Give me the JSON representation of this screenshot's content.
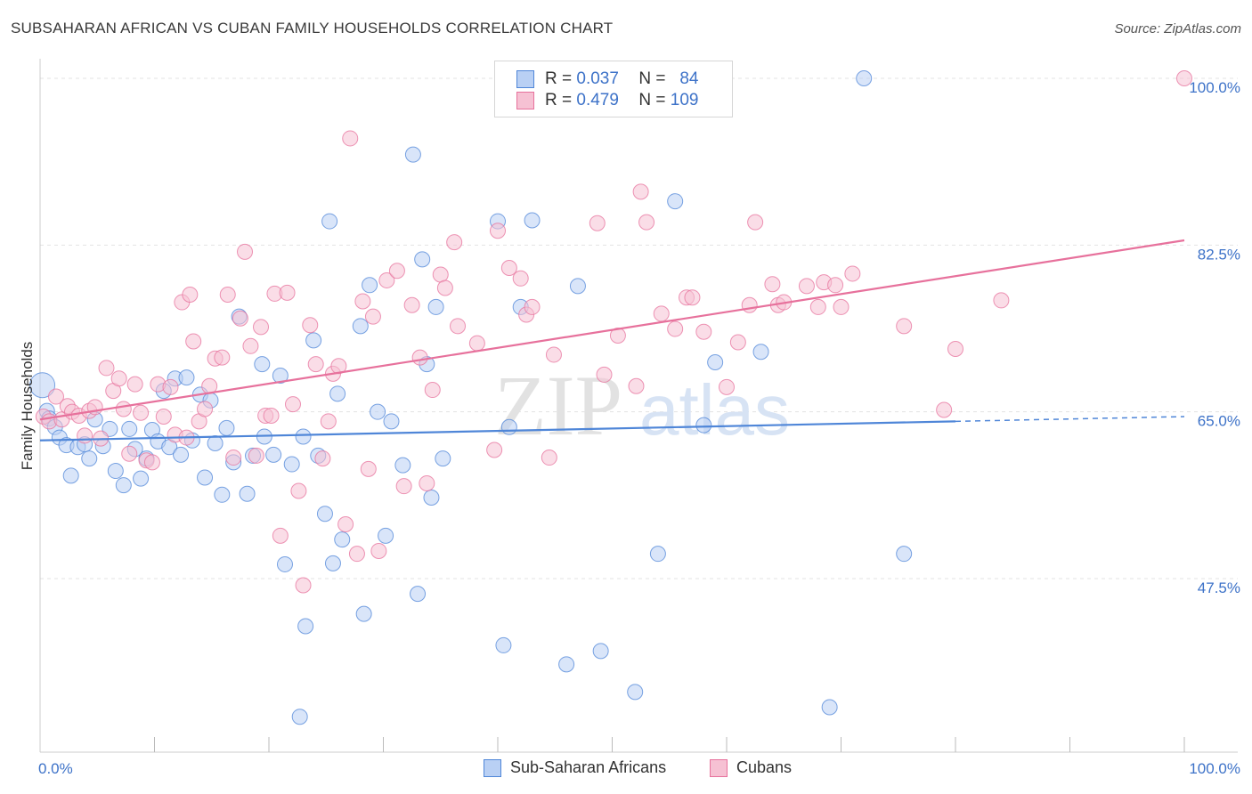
{
  "title": "SUBSAHARAN AFRICAN VS CUBAN FAMILY HOUSEHOLDS CORRELATION CHART",
  "source": "Source: ZipAtlas.com",
  "legend": {
    "r_label": "R =",
    "n_label": "N =",
    "blue": {
      "r": "0.037",
      "n": "84"
    },
    "pink": {
      "r": "0.479",
      "n": "109"
    }
  },
  "bottom_legend": {
    "blue_label": "Sub-Saharan Africans",
    "pink_label": "Cubans"
  },
  "watermark": {
    "zip": "ZIP",
    "atlas": "atlas"
  },
  "colors": {
    "blue": "#4f86d8",
    "blue_fill": "#b9d0f4",
    "pink": "#e7719c",
    "pink_fill": "#f6c1d3",
    "axis_text": "#3d72c8",
    "grid": "#e3e3e3"
  },
  "chart_data": {
    "type": "scatter",
    "xlabel": "",
    "ylabel": "Family Households",
    "xlim": [
      0,
      100
    ],
    "ylim": [
      32,
      101.5
    ],
    "x_tick_labels": [
      "0.0%",
      "100.0%"
    ],
    "y_ticks": [
      47.5,
      65.0,
      82.5,
      100.0
    ],
    "y_tick_labels": [
      "47.5%",
      "65.0%",
      "82.5%",
      "100.0%"
    ],
    "series": [
      {
        "name": "Sub-Saharan Africans",
        "color": "#4f86d8",
        "trend": {
          "x": [
            0,
            80
          ],
          "y": [
            62.0,
            64.0
          ],
          "dashed_to": [
            100,
            64.5
          ]
        },
        "points": [
          [
            0.2,
            67.8
          ],
          [
            0.6,
            65.1
          ],
          [
            0.8,
            64.3
          ],
          [
            1.3,
            63.4
          ],
          [
            1.7,
            62.3
          ],
          [
            2.3,
            61.5
          ],
          [
            2.7,
            58.3
          ],
          [
            3.3,
            61.3
          ],
          [
            3.9,
            61.6
          ],
          [
            4.3,
            60.1
          ],
          [
            4.8,
            64.2
          ],
          [
            5.5,
            61.4
          ],
          [
            6.1,
            63.2
          ],
          [
            6.6,
            58.8
          ],
          [
            7.3,
            57.3
          ],
          [
            7.8,
            63.2
          ],
          [
            8.3,
            61.1
          ],
          [
            8.8,
            58.0
          ],
          [
            9.3,
            60.1
          ],
          [
            9.8,
            63.1
          ],
          [
            10.3,
            61.9
          ],
          [
            10.8,
            67.2
          ],
          [
            11.3,
            61.3
          ],
          [
            11.8,
            68.5
          ],
          [
            12.3,
            60.5
          ],
          [
            12.8,
            68.6
          ],
          [
            13.3,
            62.0
          ],
          [
            14.0,
            66.8
          ],
          [
            14.4,
            58.1
          ],
          [
            14.9,
            66.2
          ],
          [
            15.3,
            61.7
          ],
          [
            15.9,
            56.3
          ],
          [
            16.3,
            63.3
          ],
          [
            16.9,
            59.7
          ],
          [
            17.4,
            75.0
          ],
          [
            18.1,
            56.4
          ],
          [
            18.6,
            60.4
          ],
          [
            19.4,
            70.0
          ],
          [
            19.6,
            62.4
          ],
          [
            20.4,
            60.5
          ],
          [
            21.0,
            68.8
          ],
          [
            21.4,
            49.0
          ],
          [
            22.0,
            59.5
          ],
          [
            22.7,
            33.0
          ],
          [
            23.0,
            62.4
          ],
          [
            23.2,
            42.5
          ],
          [
            23.9,
            72.5
          ],
          [
            24.3,
            60.4
          ],
          [
            24.9,
            54.3
          ],
          [
            25.3,
            85.0
          ],
          [
            25.6,
            49.1
          ],
          [
            26.0,
            66.9
          ],
          [
            26.4,
            51.6
          ],
          [
            28.0,
            74.0
          ],
          [
            28.3,
            43.8
          ],
          [
            28.8,
            78.3
          ],
          [
            29.5,
            65.0
          ],
          [
            30.2,
            52.0
          ],
          [
            30.7,
            64.0
          ],
          [
            31.7,
            59.4
          ],
          [
            32.6,
            92.0
          ],
          [
            33.0,
            45.9
          ],
          [
            33.4,
            81.0
          ],
          [
            33.8,
            70.0
          ],
          [
            34.2,
            56.0
          ],
          [
            34.6,
            76.0
          ],
          [
            35.2,
            60.1
          ],
          [
            40.0,
            85.0
          ],
          [
            40.5,
            40.5
          ],
          [
            41.0,
            63.4
          ],
          [
            42.0,
            76.0
          ],
          [
            43.0,
            85.1
          ],
          [
            46.0,
            38.5
          ],
          [
            47.0,
            78.2
          ],
          [
            49.0,
            39.9
          ],
          [
            52.0,
            35.6
          ],
          [
            54.0,
            50.1
          ],
          [
            55.5,
            87.1
          ],
          [
            58.0,
            63.6
          ],
          [
            59.0,
            70.2
          ],
          [
            63.0,
            71.3
          ],
          [
            69.0,
            34.0
          ],
          [
            72.0,
            100.0
          ],
          [
            75.5,
            50.1
          ]
        ]
      },
      {
        "name": "Cubans",
        "color": "#e7719c",
        "trend": {
          "x": [
            0,
            100
          ],
          "y": [
            64.2,
            83.0
          ]
        },
        "points": [
          [
            0.3,
            64.5
          ],
          [
            0.8,
            64.0
          ],
          [
            1.4,
            66.6
          ],
          [
            1.9,
            64.2
          ],
          [
            2.4,
            65.6
          ],
          [
            2.8,
            65.0
          ],
          [
            3.4,
            64.6
          ],
          [
            3.9,
            62.5
          ],
          [
            4.3,
            65.1
          ],
          [
            4.8,
            65.5
          ],
          [
            5.3,
            62.2
          ],
          [
            5.8,
            69.6
          ],
          [
            6.4,
            67.2
          ],
          [
            6.9,
            68.5
          ],
          [
            7.3,
            65.3
          ],
          [
            7.8,
            60.6
          ],
          [
            8.3,
            67.9
          ],
          [
            8.8,
            64.9
          ],
          [
            9.3,
            59.9
          ],
          [
            9.8,
            59.7
          ],
          [
            10.3,
            67.9
          ],
          [
            10.8,
            64.5
          ],
          [
            11.4,
            67.6
          ],
          [
            11.8,
            62.6
          ],
          [
            12.4,
            76.5
          ],
          [
            12.8,
            62.3
          ],
          [
            13.1,
            77.3
          ],
          [
            13.4,
            72.4
          ],
          [
            13.9,
            64.0
          ],
          [
            14.4,
            65.3
          ],
          [
            14.8,
            67.7
          ],
          [
            15.3,
            70.6
          ],
          [
            15.9,
            70.7
          ],
          [
            16.4,
            77.3
          ],
          [
            16.9,
            60.2
          ],
          [
            17.5,
            74.8
          ],
          [
            17.9,
            81.8
          ],
          [
            18.4,
            71.9
          ],
          [
            18.9,
            60.4
          ],
          [
            19.3,
            73.9
          ],
          [
            19.7,
            64.6
          ],
          [
            20.2,
            64.6
          ],
          [
            20.5,
            77.4
          ],
          [
            21.0,
            52.0
          ],
          [
            21.6,
            77.5
          ],
          [
            22.1,
            65.8
          ],
          [
            22.6,
            56.7
          ],
          [
            23.0,
            46.8
          ],
          [
            23.6,
            74.1
          ],
          [
            24.1,
            70.0
          ],
          [
            24.7,
            60.1
          ],
          [
            25.2,
            64.0
          ],
          [
            25.6,
            69.0
          ],
          [
            26.1,
            69.8
          ],
          [
            26.7,
            53.2
          ],
          [
            27.1,
            93.7
          ],
          [
            27.7,
            50.1
          ],
          [
            28.2,
            76.6
          ],
          [
            28.7,
            59.0
          ],
          [
            29.1,
            75.0
          ],
          [
            29.6,
            50.4
          ],
          [
            30.3,
            78.8
          ],
          [
            31.2,
            79.8
          ],
          [
            31.8,
            57.2
          ],
          [
            32.5,
            76.2
          ],
          [
            33.2,
            70.7
          ],
          [
            33.8,
            57.5
          ],
          [
            34.3,
            67.3
          ],
          [
            35.0,
            79.4
          ],
          [
            35.4,
            78.0
          ],
          [
            36.2,
            82.8
          ],
          [
            36.5,
            74.0
          ],
          [
            38.2,
            72.2
          ],
          [
            39.7,
            61.0
          ],
          [
            40.0,
            84.0
          ],
          [
            41.0,
            80.1
          ],
          [
            42.0,
            79.0
          ],
          [
            42.5,
            75.2
          ],
          [
            43.0,
            76.0
          ],
          [
            44.5,
            60.2
          ],
          [
            44.9,
            71.0
          ],
          [
            48.7,
            84.8
          ],
          [
            49.3,
            68.9
          ],
          [
            50.5,
            73.0
          ],
          [
            52.1,
            67.7
          ],
          [
            52.5,
            88.1
          ],
          [
            53.0,
            84.9
          ],
          [
            54.3,
            75.3
          ],
          [
            55.5,
            73.7
          ],
          [
            56.5,
            77.0
          ],
          [
            57.0,
            77.0
          ],
          [
            58.0,
            73.4
          ],
          [
            60.0,
            67.6
          ],
          [
            61.0,
            72.3
          ],
          [
            62.0,
            76.2
          ],
          [
            62.5,
            84.9
          ],
          [
            64.0,
            78.4
          ],
          [
            64.5,
            76.2
          ],
          [
            65.0,
            76.5
          ],
          [
            67.0,
            78.2
          ],
          [
            68.0,
            76.0
          ],
          [
            68.5,
            78.6
          ],
          [
            69.5,
            78.3
          ],
          [
            70.0,
            76.0
          ],
          [
            71.0,
            79.5
          ],
          [
            75.5,
            74.0
          ],
          [
            79.0,
            65.2
          ],
          [
            80.0,
            71.6
          ],
          [
            84.0,
            76.7
          ],
          [
            100.0,
            100.0
          ]
        ]
      }
    ]
  }
}
